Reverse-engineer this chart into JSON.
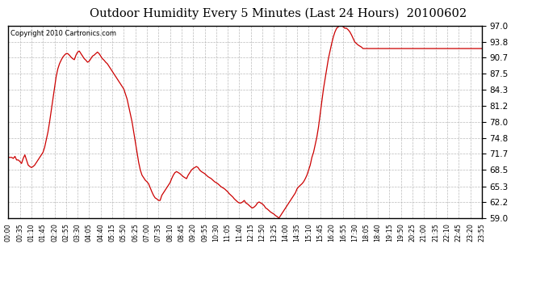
{
  "title": "Outdoor Humidity Every 5 Minutes (Last 24 Hours)  20100602",
  "copyright_text": "Copyright 2010 Cartronics.com",
  "line_color": "#cc0000",
  "bg_color": "#ffffff",
  "grid_color": "#aaaaaa",
  "yticks": [
    59.0,
    62.2,
    65.3,
    68.5,
    71.7,
    74.8,
    78.0,
    81.2,
    84.3,
    87.5,
    90.7,
    93.8,
    97.0
  ],
  "ymin": 59.0,
  "ymax": 97.0,
  "xtick_labels": [
    "00:00",
    "00:35",
    "01:10",
    "01:45",
    "02:20",
    "02:55",
    "03:30",
    "04:05",
    "04:40",
    "05:15",
    "05:50",
    "06:25",
    "07:00",
    "07:35",
    "08:10",
    "08:45",
    "09:20",
    "09:55",
    "10:30",
    "11:05",
    "11:40",
    "12:15",
    "12:50",
    "13:25",
    "14:00",
    "14:35",
    "15:10",
    "15:45",
    "16:20",
    "16:55",
    "17:30",
    "18:05",
    "18:40",
    "19:15",
    "19:50",
    "20:25",
    "21:00",
    "21:35",
    "22:10",
    "22:45",
    "23:20",
    "23:55"
  ],
  "humidity_values": [
    71.0,
    71.0,
    71.0,
    70.8,
    71.2,
    70.5,
    70.5,
    70.2,
    69.8,
    70.8,
    71.5,
    70.5,
    69.5,
    69.2,
    69.0,
    69.2,
    69.5,
    70.0,
    70.5,
    71.0,
    71.5,
    72.0,
    73.0,
    74.5,
    76.0,
    78.0,
    80.2,
    82.5,
    84.8,
    87.0,
    88.5,
    89.5,
    90.2,
    90.8,
    91.2,
    91.5,
    91.5,
    91.2,
    90.8,
    90.5,
    90.3,
    91.2,
    91.8,
    92.0,
    91.5,
    91.0,
    90.5,
    90.2,
    89.8,
    90.0,
    90.5,
    91.0,
    91.2,
    91.5,
    91.8,
    91.5,
    91.0,
    90.5,
    90.2,
    89.8,
    89.5,
    89.0,
    88.5,
    88.0,
    87.5,
    87.0,
    86.5,
    86.0,
    85.5,
    85.0,
    84.5,
    83.5,
    82.5,
    81.0,
    79.5,
    78.0,
    76.0,
    74.0,
    72.0,
    70.0,
    68.5,
    67.5,
    67.0,
    66.5,
    66.2,
    65.8,
    65.0,
    64.2,
    63.5,
    63.0,
    62.8,
    62.5,
    62.5,
    63.5,
    64.0,
    64.5,
    65.0,
    65.5,
    66.0,
    66.8,
    67.5,
    68.0,
    68.2,
    68.0,
    67.8,
    67.5,
    67.2,
    67.0,
    66.8,
    67.5,
    68.0,
    68.5,
    68.8,
    69.0,
    69.2,
    69.0,
    68.5,
    68.2,
    68.0,
    67.8,
    67.5,
    67.2,
    67.0,
    66.8,
    66.5,
    66.2,
    66.0,
    65.8,
    65.5,
    65.2,
    65.0,
    64.8,
    64.5,
    64.2,
    63.8,
    63.5,
    63.2,
    62.8,
    62.5,
    62.2,
    62.0,
    62.0,
    62.2,
    62.5,
    62.0,
    61.8,
    61.5,
    61.2,
    61.0,
    61.2,
    61.5,
    62.0,
    62.2,
    62.0,
    61.8,
    61.5,
    61.0,
    60.8,
    60.5,
    60.2,
    60.0,
    59.8,
    59.5,
    59.3,
    59.0,
    59.5,
    60.0,
    60.5,
    61.0,
    61.5,
    62.0,
    62.5,
    63.0,
    63.5,
    64.0,
    64.8,
    65.2,
    65.5,
    65.8,
    66.2,
    66.8,
    67.5,
    68.5,
    69.5,
    71.0,
    72.0,
    73.5,
    75.0,
    77.0,
    79.5,
    82.0,
    84.5,
    86.5,
    88.5,
    90.5,
    92.0,
    93.5,
    94.8,
    95.8,
    96.5,
    96.8,
    97.0,
    97.0,
    96.8,
    96.5,
    96.5,
    96.2,
    95.8,
    95.2,
    94.5,
    93.8,
    93.5,
    93.2,
    93.0,
    92.8,
    92.5,
    92.5,
    92.5,
    92.5,
    92.5,
    92.5,
    92.5,
    92.5,
    92.5,
    92.5,
    92.5,
    92.5,
    92.5,
    92.5,
    92.5,
    92.5,
    92.5,
    92.5,
    92.5,
    92.5,
    92.5,
    92.5,
    92.5,
    92.5,
    92.5,
    92.5,
    92.5,
    92.5,
    92.5,
    92.5,
    92.5,
    92.5,
    92.5,
    92.5,
    92.5,
    92.5,
    92.5,
    92.5,
    92.5,
    92.5,
    92.5,
    92.5,
    92.5,
    92.5,
    92.5,
    92.5,
    92.5,
    92.5,
    92.5,
    92.5,
    92.5,
    92.5,
    92.5,
    92.5,
    92.5,
    92.5,
    92.5,
    92.5,
    92.5,
    92.5,
    92.5,
    92.5,
    92.5,
    92.5,
    92.5,
    92.5,
    92.5,
    92.5,
    92.5,
    92.5,
    92.5,
    92.5,
    92.5
  ]
}
